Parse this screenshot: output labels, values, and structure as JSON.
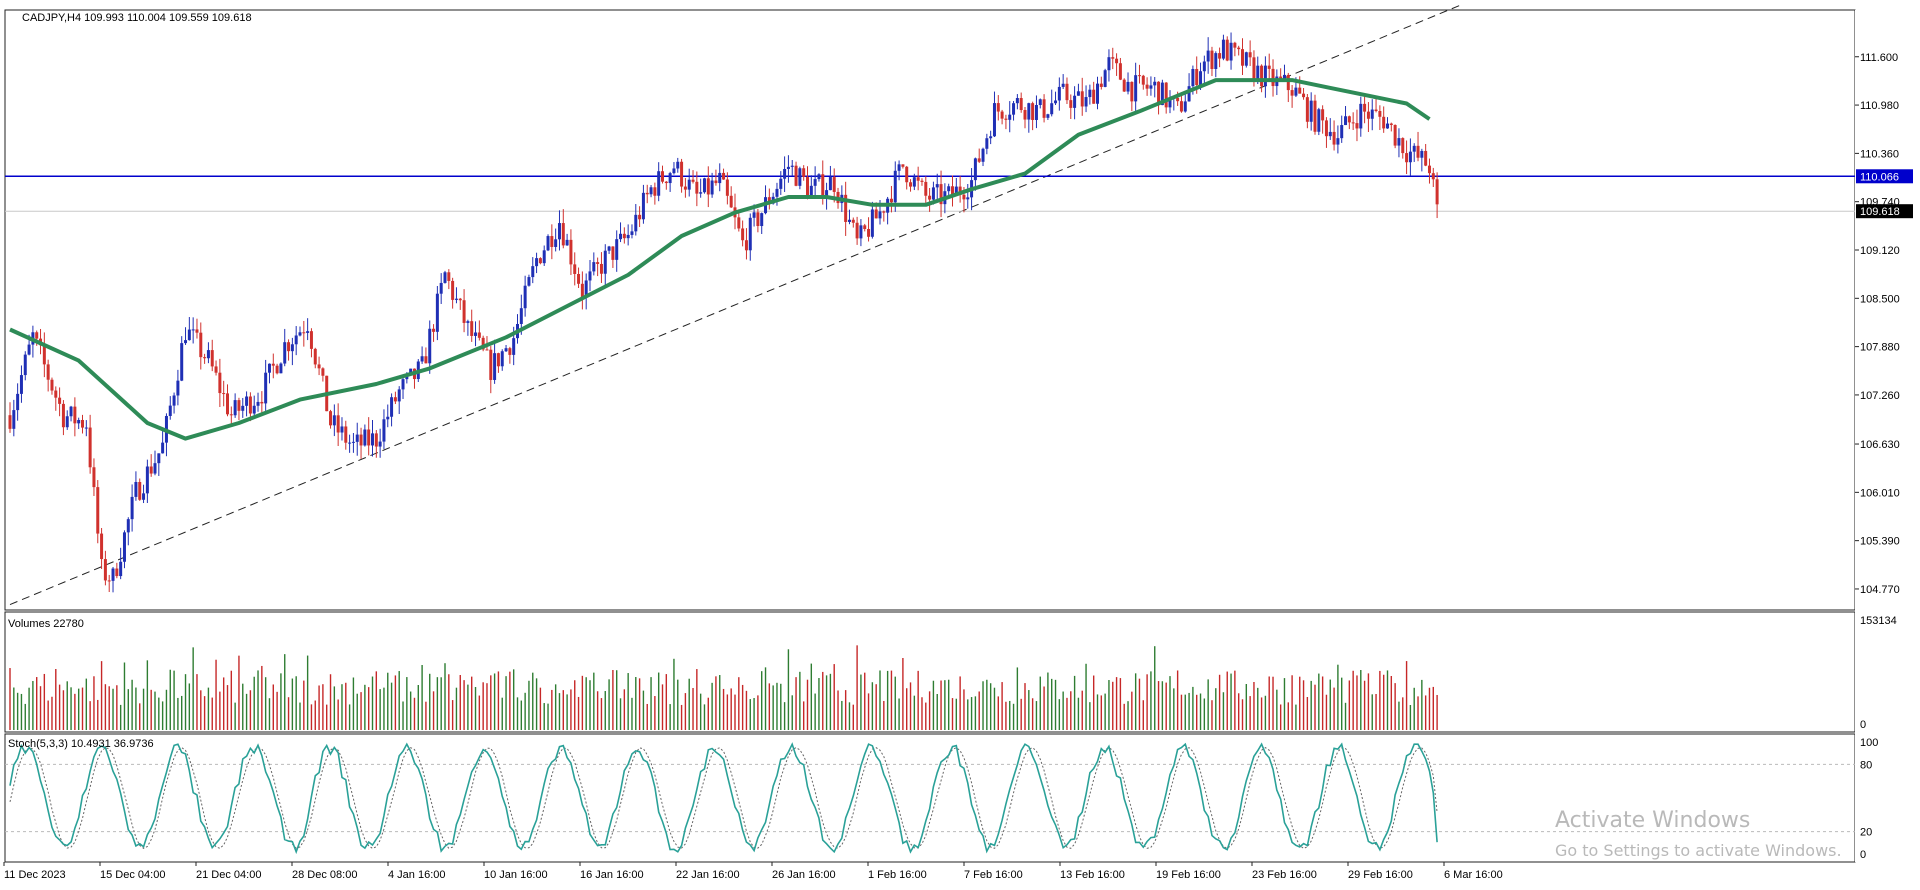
{
  "header": {
    "symbol_line": "CADJPY,H4  109.993 110.004 109.559 109.618",
    "volumes_label": "Volumes 22780",
    "stoch_label": "Stoch(5,3,3) 10.4931 36.9736"
  },
  "watermark": {
    "title": "Activate Windows",
    "subtitle": "Go to Settings to activate Windows."
  },
  "colors": {
    "bull": "#1f2fb5",
    "bear": "#d0312d",
    "ma": "#2e8b57",
    "stoch_main": "#2aa198",
    "stoch_signal": "#666666",
    "hline": "#0000cc",
    "price_tag_bg": "#000000",
    "hline_tag_bg": "#0000cc",
    "vol_up": "#2e7d32",
    "vol_down": "#c62828"
  },
  "chart_data": [
    {
      "type": "candlestick",
      "title": "CADJPY,H4",
      "ohlc_readout": {
        "open": 109.993,
        "high": 110.004,
        "low": 109.559,
        "close": 109.618
      },
      "ylim": [
        104.5,
        112.2
      ],
      "y_ticks": [
        "111.600",
        "110.980",
        "110.360",
        "109.740",
        "109.120",
        "108.500",
        "107.880",
        "107.260",
        "106.630",
        "106.010",
        "105.390",
        "104.770"
      ],
      "x_ticks": [
        "11 Dec 2023",
        "15 Dec 04:00",
        "21 Dec 04:00",
        "28 Dec 08:00",
        "4 Jan 16:00",
        "10 Jan 16:00",
        "16 Jan 16:00",
        "22 Jan 16:00",
        "26 Jan 16:00",
        "1 Feb 16:00",
        "7 Feb 16:00",
        "13 Feb 16:00",
        "19 Feb 16:00",
        "23 Feb 16:00",
        "29 Feb 16:00",
        "6 Mar 16:00"
      ],
      "close_path": [
        [
          0,
          107.0
        ],
        [
          6,
          108.0
        ],
        [
          14,
          107.0
        ],
        [
          20,
          106.9
        ],
        [
          24,
          105.0
        ],
        [
          27,
          104.9
        ],
        [
          33,
          106.0
        ],
        [
          40,
          106.6
        ],
        [
          46,
          108.1
        ],
        [
          52,
          107.7
        ],
        [
          58,
          107.0
        ],
        [
          66,
          107.3
        ],
        [
          72,
          107.9
        ],
        [
          78,
          108.2
        ],
        [
          84,
          106.9
        ],
        [
          90,
          106.6
        ],
        [
          96,
          106.7
        ],
        [
          102,
          107.3
        ],
        [
          108,
          107.6
        ],
        [
          114,
          108.8
        ],
        [
          120,
          108.1
        ],
        [
          126,
          107.6
        ],
        [
          132,
          108.0
        ],
        [
          138,
          109.0
        ],
        [
          144,
          109.5
        ],
        [
          150,
          108.6
        ],
        [
          156,
          109.0
        ],
        [
          162,
          109.3
        ],
        [
          168,
          109.9
        ],
        [
          174,
          110.2
        ],
        [
          180,
          109.8
        ],
        [
          186,
          110.0
        ],
        [
          192,
          109.2
        ],
        [
          198,
          109.7
        ],
        [
          204,
          110.2
        ],
        [
          210,
          109.9
        ],
        [
          216,
          110.0
        ],
        [
          222,
          109.2
        ],
        [
          228,
          109.6
        ],
        [
          234,
          110.2
        ],
        [
          240,
          109.8
        ],
        [
          246,
          109.8
        ],
        [
          252,
          110.0
        ],
        [
          258,
          110.9
        ],
        [
          264,
          111.0
        ],
        [
          270,
          110.9
        ],
        [
          276,
          111.1
        ],
        [
          282,
          111.0
        ],
        [
          288,
          111.5
        ],
        [
          294,
          111.2
        ],
        [
          300,
          111.2
        ],
        [
          306,
          110.9
        ],
        [
          312,
          111.5
        ],
        [
          318,
          111.7
        ],
        [
          324,
          111.5
        ],
        [
          330,
          111.3
        ],
        [
          336,
          111.2
        ],
        [
          342,
          110.8
        ],
        [
          348,
          110.6
        ],
        [
          354,
          110.9
        ],
        [
          360,
          110.8
        ],
        [
          366,
          110.4
        ],
        [
          372,
          110.2
        ],
        [
          374,
          109.6
        ]
      ],
      "horizontal_lines": [
        {
          "value": 110.066,
          "label": "110.066"
        },
        {
          "value": 109.618,
          "label": "109.618"
        }
      ],
      "trendline": {
        "from": [
          0,
          104.57
        ],
        "to": [
          380,
          112.26
        ]
      },
      "moving_average": [
        [
          0,
          108.1
        ],
        [
          18,
          107.7
        ],
        [
          36,
          106.9
        ],
        [
          46,
          106.7
        ],
        [
          60,
          106.9
        ],
        [
          76,
          107.2
        ],
        [
          96,
          107.4
        ],
        [
          110,
          107.6
        ],
        [
          130,
          108.0
        ],
        [
          146,
          108.4
        ],
        [
          162,
          108.8
        ],
        [
          176,
          109.3
        ],
        [
          190,
          109.6
        ],
        [
          204,
          109.8
        ],
        [
          214,
          109.8
        ],
        [
          226,
          109.7
        ],
        [
          240,
          109.7
        ],
        [
          252,
          109.9
        ],
        [
          266,
          110.1
        ],
        [
          280,
          110.6
        ],
        [
          296,
          110.9
        ],
        [
          306,
          111.1
        ],
        [
          316,
          111.3
        ],
        [
          326,
          111.3
        ],
        [
          336,
          111.3
        ],
        [
          346,
          111.2
        ],
        [
          356,
          111.1
        ],
        [
          366,
          111.0
        ],
        [
          372,
          110.8
        ]
      ]
    },
    {
      "type": "bar",
      "title": "Volumes 22780",
      "ylim": [
        0,
        153134
      ],
      "y_ticks": [
        "153134",
        "0"
      ],
      "values_pattern": "alternating"
    },
    {
      "type": "line",
      "title": "Stoch(5,3,3) 10.4931 36.9736",
      "ylim": [
        0,
        100
      ],
      "y_ticks": [
        "100",
        "80",
        "20",
        "0"
      ],
      "levels": [
        80,
        20
      ],
      "main_value": 10.4931,
      "signal_value": 36.9736
    }
  ]
}
